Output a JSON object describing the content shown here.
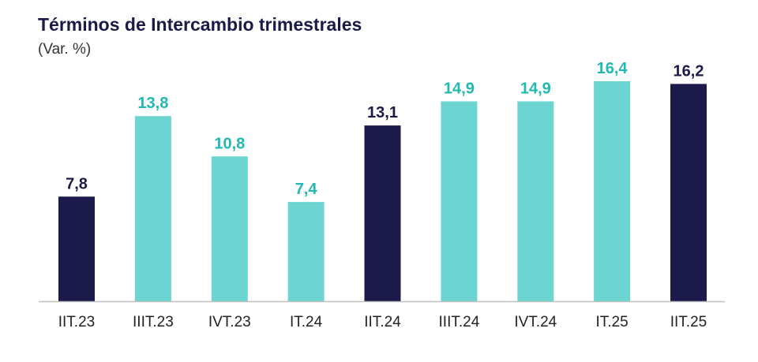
{
  "title": "Términos de Intercambio trimestrales",
  "subtitle": "(Var. %)",
  "colors": {
    "dark": "#1b1a4b",
    "light": "#6dd5d1",
    "label_light": "#20b8b3",
    "label_dark": "#1b1a4b",
    "axis": "#bfbfbf",
    "tick": "#222222"
  },
  "chart_data": {
    "type": "bar",
    "title": "Términos de Intercambio trimestrales",
    "subtitle": "(Var. %)",
    "categories": [
      "IIT.23",
      "IIIT.23",
      "IVT.23",
      "IT.24",
      "IIT.24",
      "IIIT.24",
      "IVT.24",
      "IT.25",
      "IIT.25"
    ],
    "values": [
      7.8,
      13.8,
      10.8,
      7.4,
      13.1,
      14.9,
      14.9,
      16.4,
      16.2
    ],
    "labels": [
      "7,8",
      "13,8",
      "10,8",
      "7,4",
      "13,1",
      "14,9",
      "14,9",
      "16,4",
      "16,2"
    ],
    "highlight": [
      true,
      false,
      false,
      false,
      true,
      false,
      false,
      false,
      true
    ],
    "ylim": [
      0,
      16.4
    ],
    "grid": false,
    "legend": "none"
  }
}
